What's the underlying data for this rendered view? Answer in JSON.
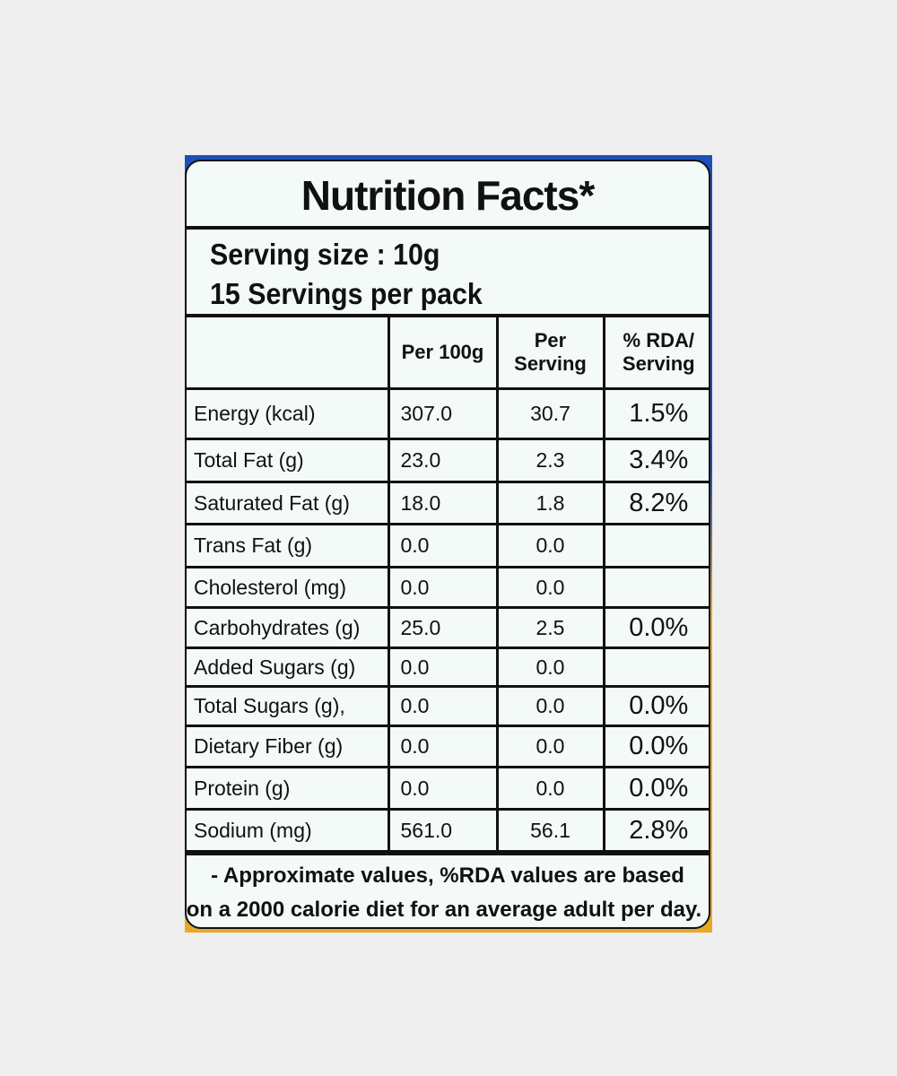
{
  "title": "Nutrition Facts*",
  "serving_size": "Serving size : 10g",
  "servings_per_pack": "15 Servings per pack",
  "columns": {
    "nutrient": "",
    "per_100g": "Per 100g",
    "per_serving_1": "Per",
    "per_serving_2": "Serving",
    "rda_1": "% RDA/",
    "rda_2": "Serving"
  },
  "rows": [
    {
      "name": "Energy (kcal)",
      "per_100g": "307.0",
      "per_serving": "30.7",
      "rda": "1.5%"
    },
    {
      "name": "Total Fat (g)",
      "per_100g": "23.0",
      "per_serving": "2.3",
      "rda": "3.4%"
    },
    {
      "name": "Saturated Fat (g)",
      "per_100g": "18.0",
      "per_serving": "1.8",
      "rda": "8.2%"
    },
    {
      "name": "Trans Fat (g)",
      "per_100g": "0.0",
      "per_serving": "0.0",
      "rda": ""
    },
    {
      "name": "Cholesterol (mg)",
      "per_100g": "0.0",
      "per_serving": "0.0",
      "rda": ""
    },
    {
      "name": "Carbohydrates (g)",
      "per_100g": "25.0",
      "per_serving": "2.5",
      "rda": "0.0%"
    },
    {
      "name": "Added Sugars (g)",
      "per_100g": "0.0",
      "per_serving": "0.0",
      "rda": ""
    },
    {
      "name": "Total Sugars (g),",
      "per_100g": "0.0",
      "per_serving": "0.0",
      "rda": "0.0%"
    },
    {
      "name": "Dietary Fiber (g)",
      "per_100g": "0.0",
      "per_serving": "0.0",
      "rda": "0.0%"
    },
    {
      "name": "Protein (g)",
      "per_100g": "0.0",
      "per_serving": "0.0",
      "rda": "0.0%"
    },
    {
      "name": "Sodium (mg)",
      "per_100g": "561.0",
      "per_serving": "56.1",
      "rda": "2.8%"
    }
  ],
  "footnote_1": "- Approximate values, %RDA values are based",
  "footnote_2": "on a 2000 calorie diet for an average adult per day."
}
